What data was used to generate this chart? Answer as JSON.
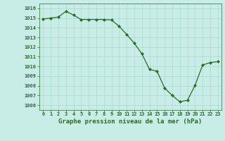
{
  "x": [
    0,
    1,
    2,
    3,
    4,
    5,
    6,
    7,
    8,
    9,
    10,
    11,
    12,
    13,
    14,
    15,
    16,
    17,
    18,
    19,
    20,
    21,
    22,
    23
  ],
  "y": [
    1014.9,
    1015.0,
    1015.1,
    1015.7,
    1015.3,
    1014.85,
    1014.85,
    1014.85,
    1014.85,
    1014.8,
    1014.15,
    1013.3,
    1012.4,
    1011.3,
    1009.7,
    1009.5,
    1007.75,
    1007.0,
    1006.35,
    1006.5,
    1008.05,
    1010.15,
    1010.4,
    1010.5
  ],
  "line_color": "#2a6b2a",
  "marker": "D",
  "marker_size": 2.0,
  "bg_color": "#c8ece6",
  "grid_color": "#aad8cc",
  "xlabel": "Graphe pression niveau de la mer (hPa)",
  "ylim": [
    1005.5,
    1016.5
  ],
  "xlim": [
    -0.5,
    23.5
  ],
  "yticks": [
    1006,
    1007,
    1008,
    1009,
    1010,
    1011,
    1012,
    1013,
    1014,
    1015,
    1016
  ],
  "xticks": [
    0,
    1,
    2,
    3,
    4,
    5,
    6,
    7,
    8,
    9,
    10,
    11,
    12,
    13,
    14,
    15,
    16,
    17,
    18,
    19,
    20,
    21,
    22,
    23
  ],
  "tick_color": "#2a6b2a",
  "label_color": "#2a6b2a",
  "xlabel_fontsize": 6.5,
  "tick_fontsize": 5.0,
  "linewidth": 0.9
}
